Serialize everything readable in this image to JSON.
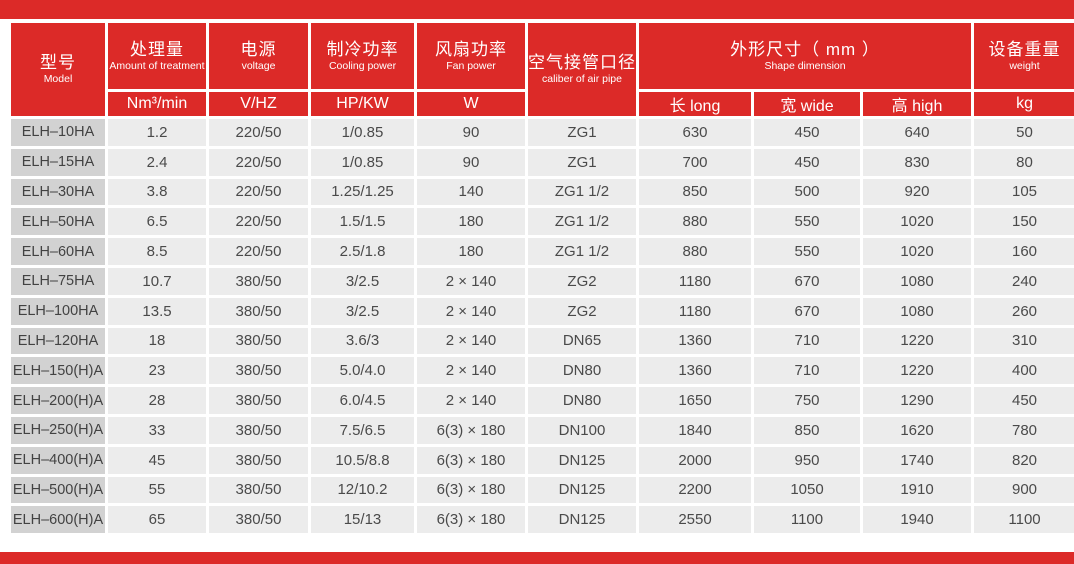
{
  "colors": {
    "accent_red": "#dc2a28",
    "cell_bg": "#ececec",
    "model_col_bg": "#d2d2d2",
    "body_text": "#4a4a4a",
    "header_text": "#ffffff"
  },
  "table": {
    "header": {
      "model": {
        "zh": "型号",
        "en": "Model"
      },
      "treatment": {
        "zh": "处理量",
        "en": "Amount of treatment",
        "unit": "Nm³/min"
      },
      "voltage": {
        "zh": "电源",
        "en": "voltage",
        "unit": "V/HZ"
      },
      "cooling": {
        "zh": "制冷功率",
        "en": "Cooling power",
        "unit": "HP/KW"
      },
      "fan": {
        "zh": "风扇功率",
        "en": "Fan power",
        "unit": "W"
      },
      "pipe": {
        "zh": "空气接管口径",
        "en": "caliber of air pipe"
      },
      "dimension": {
        "zh": "外形尺寸（ mm ）",
        "en": "Shape dimension",
        "sub": [
          "长 long",
          "宽 wide",
          "高 high"
        ]
      },
      "weight": {
        "zh": "设备重量",
        "en": "weight",
        "unit": "kg"
      }
    },
    "rows": [
      [
        "ELH–10HA",
        "1.2",
        "220/50",
        "1/0.85",
        "90",
        "ZG1",
        "630",
        "450",
        "640",
        "50"
      ],
      [
        "ELH–15HA",
        "2.4",
        "220/50",
        "1/0.85",
        "90",
        "ZG1",
        "700",
        "450",
        "830",
        "80"
      ],
      [
        "ELH–30HA",
        "3.8",
        "220/50",
        "1.25/1.25",
        "140",
        "ZG1 1/2",
        "850",
        "500",
        "920",
        "105"
      ],
      [
        "ELH–50HA",
        "6.5",
        "220/50",
        "1.5/1.5",
        "180",
        "ZG1 1/2",
        "880",
        "550",
        "1020",
        "150"
      ],
      [
        "ELH–60HA",
        "8.5",
        "220/50",
        "2.5/1.8",
        "180",
        "ZG1 1/2",
        "880",
        "550",
        "1020",
        "160"
      ],
      [
        "ELH–75HA",
        "10.7",
        "380/50",
        "3/2.5",
        "2 × 140",
        "ZG2",
        "1180",
        "670",
        "1080",
        "240"
      ],
      [
        "ELH–100HA",
        "13.5",
        "380/50",
        "3/2.5",
        "2 × 140",
        "ZG2",
        "1180",
        "670",
        "1080",
        "260"
      ],
      [
        "ELH–120HA",
        "18",
        "380/50",
        "3.6/3",
        "2 × 140",
        "DN65",
        "1360",
        "710",
        "1220",
        "310"
      ],
      [
        "ELH–150(H)A",
        "23",
        "380/50",
        "5.0/4.0",
        "2 × 140",
        "DN80",
        "1360",
        "710",
        "1220",
        "400"
      ],
      [
        "ELH–200(H)A",
        "28",
        "380/50",
        "6.0/4.5",
        "2 × 140",
        "DN80",
        "1650",
        "750",
        "1290",
        "450"
      ],
      [
        "ELH–250(H)A",
        "33",
        "380/50",
        "7.5/6.5",
        "6(3) × 180",
        "DN100",
        "1840",
        "850",
        "1620",
        "780"
      ],
      [
        "ELH–400(H)A",
        "45",
        "380/50",
        "10.5/8.8",
        "6(3) × 180",
        "DN125",
        "2000",
        "950",
        "1740",
        "820"
      ],
      [
        "ELH–500(H)A",
        "55",
        "380/50",
        "12/10.2",
        "6(3) × 180",
        "DN125",
        "2200",
        "1050",
        "1910",
        "900"
      ],
      [
        "ELH–600(H)A",
        "65",
        "380/50",
        "15/13",
        "6(3) × 180",
        "DN125",
        "2550",
        "1100",
        "1940",
        "1100"
      ]
    ]
  }
}
